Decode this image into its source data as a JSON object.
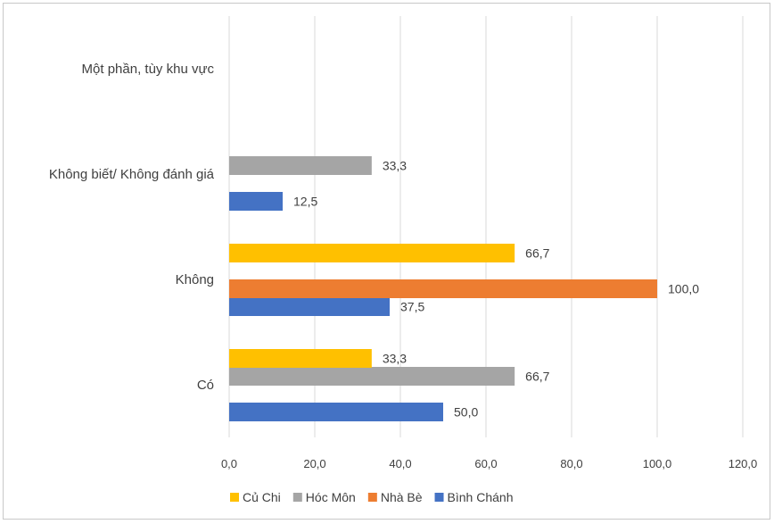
{
  "chart_data": {
    "type": "bar",
    "orientation": "horizontal",
    "categories": [
      "Có",
      "Không",
      "Không biết/ Không đánh giá",
      "Một phần, tùy khu vực"
    ],
    "series": [
      {
        "name": "Bình Chánh",
        "color": "#4472C4",
        "values": [
          50.0,
          37.5,
          12.5,
          null
        ]
      },
      {
        "name": "Nhà Bè",
        "color": "#ED7D31",
        "values": [
          null,
          100.0,
          null,
          null
        ]
      },
      {
        "name": "Hóc Môn",
        "color": "#A5A5A5",
        "values": [
          66.7,
          null,
          33.3,
          null
        ]
      },
      {
        "name": "Củ Chi",
        "color": "#FFC000",
        "values": [
          33.3,
          66.7,
          null,
          null
        ]
      }
    ],
    "xlim": [
      0,
      120
    ],
    "xticks": [
      "0,0",
      "20,0",
      "40,0",
      "60,0",
      "80,0",
      "100,0",
      "120,0"
    ],
    "grid": true,
    "legend_position": "bottom",
    "legend_order": [
      "Củ Chi",
      "Hóc Môn",
      "Nhà Bè",
      "Bình Chánh"
    ],
    "value_format": "one decimal, comma separator"
  }
}
